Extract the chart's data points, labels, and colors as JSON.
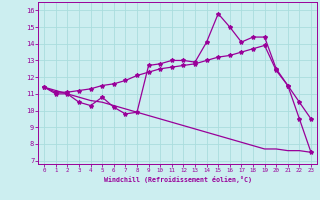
{
  "xlabel": "Windchill (Refroidissement éolien,°C)",
  "background_color": "#cceef0",
  "line_color": "#990099",
  "grid_color": "#aadddd",
  "x_ticks": [
    0,
    1,
    2,
    3,
    4,
    5,
    6,
    7,
    8,
    9,
    10,
    11,
    12,
    13,
    14,
    15,
    16,
    17,
    18,
    19,
    20,
    21,
    22,
    23
  ],
  "y_ticks": [
    7,
    8,
    9,
    10,
    11,
    12,
    13,
    14,
    15,
    16
  ],
  "ylim": [
    6.8,
    16.5
  ],
  "xlim": [
    -0.5,
    23.5
  ],
  "series1_y": [
    11.4,
    11.0,
    11.0,
    10.5,
    10.3,
    10.8,
    10.2,
    9.8,
    9.9,
    12.7,
    12.8,
    13.0,
    13.0,
    12.9,
    14.1,
    15.8,
    15.0,
    14.1,
    14.4,
    14.4,
    12.5,
    11.5,
    9.5,
    7.5
  ],
  "series2_y": [
    11.4,
    11.1,
    11.1,
    11.2,
    11.3,
    11.5,
    11.6,
    11.8,
    12.1,
    12.3,
    12.5,
    12.6,
    12.7,
    12.8,
    13.0,
    13.2,
    13.3,
    13.5,
    13.7,
    13.9,
    12.4,
    11.5,
    10.5,
    9.5
  ],
  "series3_y": [
    11.4,
    11.2,
    11.0,
    10.8,
    10.6,
    10.5,
    10.3,
    10.1,
    9.9,
    9.7,
    9.5,
    9.3,
    9.1,
    8.9,
    8.7,
    8.5,
    8.3,
    8.1,
    7.9,
    7.7,
    7.7,
    7.6,
    7.6,
    7.5
  ],
  "marker_size": 3,
  "line_width": 0.9
}
